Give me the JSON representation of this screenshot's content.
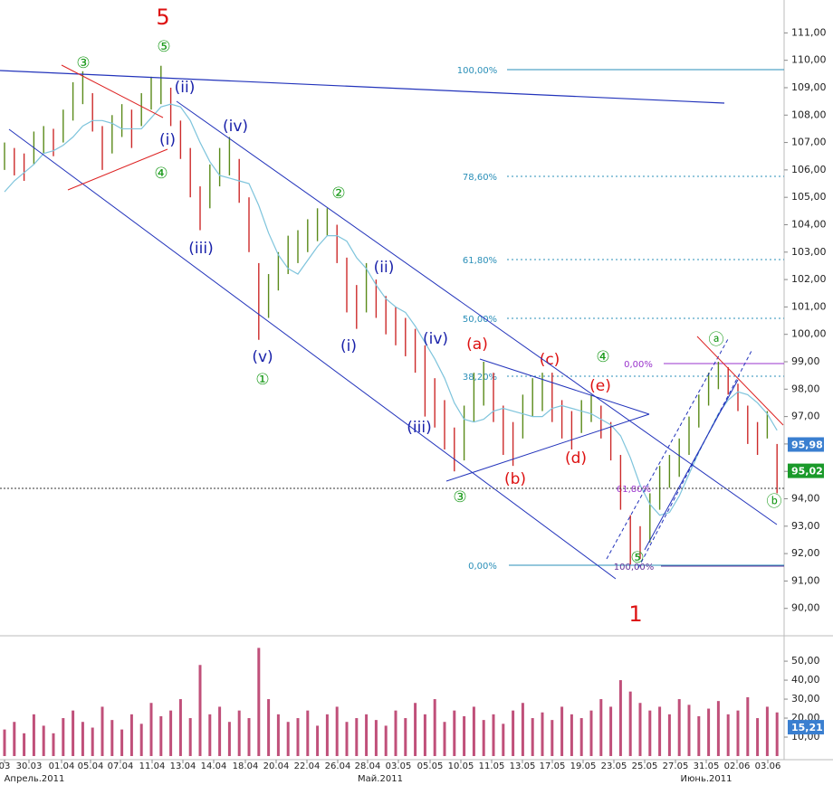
{
  "chart_data": {
    "type": "ohlc",
    "categories": [
      "03",
      "30.03",
      "01.04",
      "05.04",
      "07.04",
      "11.04",
      "13.04",
      "14.04",
      "18.04",
      "20.04",
      "22.04",
      "26.04",
      "28.04",
      "03.05",
      "05.05",
      "10.05",
      "11.05",
      "13.05",
      "17.05",
      "19.05",
      "23.05",
      "25.05",
      "27.05",
      "31.05",
      "02.06",
      "03.06"
    ],
    "months": [
      "Апрель.2011",
      "Май.2011",
      "Июнь.2011"
    ],
    "ylim": [
      89.1,
      112.2
    ],
    "yticks": [
      {
        "value": 111,
        "label": "111,00"
      },
      {
        "value": 110,
        "label": "110,00"
      },
      {
        "value": 109,
        "label": "109,00"
      },
      {
        "value": 108,
        "label": "108,00"
      },
      {
        "value": 107,
        "label": "107,00"
      },
      {
        "value": 106,
        "label": "106,00"
      },
      {
        "value": 105,
        "label": "105,00"
      },
      {
        "value": 104,
        "label": "104,00"
      },
      {
        "value": 103,
        "label": "103,00"
      },
      {
        "value": 102,
        "label": "102,00"
      },
      {
        "value": 101,
        "label": "101,00"
      },
      {
        "value": 100,
        "label": "100,00"
      },
      {
        "value": 99,
        "label": "99,00"
      },
      {
        "value": 98,
        "label": "98,00"
      },
      {
        "value": 97,
        "label": "97,00"
      },
      {
        "value": 96,
        "label": "96,00"
      },
      {
        "value": 95,
        "label": "95,00"
      },
      {
        "value": 94,
        "label": "94,00"
      },
      {
        "value": 93,
        "label": "93,00"
      },
      {
        "value": 92,
        "label": "92,00"
      },
      {
        "value": 91,
        "label": "91,00"
      },
      {
        "value": 90,
        "label": "90,00"
      }
    ],
    "high": [
      107.0,
      106.8,
      106.6,
      107.4,
      107.6,
      107.5,
      108.2,
      109.2,
      109.6,
      108.8,
      107.6,
      108.0,
      108.4,
      108.2,
      108.8,
      109.4,
      109.8,
      109.0,
      107.8,
      106.8,
      105.4,
      106.2,
      106.8,
      107.2,
      106.4,
      105.0,
      102.6,
      102.2,
      103.0,
      103.6,
      103.8,
      104.2,
      104.6,
      104.6,
      104.0,
      102.8,
      101.8,
      102.6,
      102.0,
      101.4,
      101.0,
      100.6,
      100.2,
      99.6,
      98.4,
      97.6,
      96.6,
      97.4,
      98.6,
      99.0,
      98.6,
      97.4,
      96.8,
      97.8,
      98.4,
      98.6,
      98.6,
      97.6,
      97.2,
      97.6,
      97.8,
      97.4,
      96.8,
      95.6,
      93.4,
      93.0,
      94.2,
      95.2,
      95.6,
      96.2,
      97.0,
      97.8,
      98.6,
      99.0,
      98.8,
      98.2,
      97.4,
      96.8,
      97.2,
      96.0
    ],
    "low": [
      106.0,
      105.8,
      105.6,
      106.2,
      106.6,
      106.5,
      107.0,
      107.8,
      108.4,
      107.4,
      106.0,
      106.6,
      107.2,
      106.8,
      107.6,
      108.2,
      108.4,
      107.6,
      106.4,
      105.0,
      103.8,
      104.6,
      105.4,
      105.8,
      104.8,
      103.0,
      99.8,
      100.6,
      101.6,
      102.2,
      102.6,
      103.0,
      103.4,
      103.6,
      102.6,
      100.8,
      100.2,
      100.8,
      100.6,
      100.0,
      99.6,
      99.2,
      98.6,
      97.0,
      96.6,
      95.8,
      95.0,
      95.4,
      96.8,
      97.4,
      96.8,
      95.6,
      95.2,
      96.2,
      97.0,
      97.2,
      96.8,
      96.2,
      95.8,
      96.4,
      96.8,
      96.2,
      95.4,
      93.6,
      91.6,
      91.8,
      92.4,
      93.6,
      94.4,
      94.8,
      95.6,
      96.6,
      97.4,
      98.0,
      97.8,
      97.2,
      96.0,
      95.6,
      96.2,
      94.2
    ],
    "ma": [
      105.2,
      105.6,
      105.9,
      106.2,
      106.6,
      106.7,
      106.9,
      107.2,
      107.6,
      107.8,
      107.8,
      107.7,
      107.5,
      107.5,
      107.5,
      107.9,
      108.3,
      108.4,
      108.3,
      107.8,
      107.0,
      106.3,
      105.8,
      105.7,
      105.6,
      105.5,
      104.7,
      103.7,
      102.9,
      102.4,
      102.2,
      102.7,
      103.2,
      103.6,
      103.6,
      103.4,
      102.8,
      102.4,
      101.8,
      101.3,
      101.0,
      100.8,
      100.3,
      99.7,
      99.1,
      98.4,
      97.5,
      96.9,
      96.8,
      96.9,
      97.2,
      97.3,
      97.2,
      97.1,
      97.0,
      97.0,
      97.3,
      97.4,
      97.3,
      97.2,
      97.1,
      96.9,
      96.7,
      96.3,
      95.5,
      94.5,
      93.8,
      93.4,
      93.5,
      94.1,
      94.9,
      95.7,
      96.4,
      97.1,
      97.6,
      97.9,
      97.8,
      97.5,
      97.1,
      96.5
    ],
    "price_labels": [
      {
        "value": 95.98,
        "label": "95,98",
        "color": "#3a7fd0"
      },
      {
        "value": 95.02,
        "label": "95,02",
        "color": "#1a9a2a"
      }
    ],
    "volume": [
      14,
      18,
      12,
      22,
      16,
      12,
      20,
      24,
      18,
      15,
      26,
      19,
      14,
      22,
      17,
      28,
      21,
      24,
      30,
      20,
      48,
      22,
      26,
      18,
      24,
      20,
      57,
      30,
      22,
      18,
      20,
      24,
      16,
      22,
      26,
      18,
      20,
      22,
      19,
      16,
      24,
      20,
      28,
      22,
      30,
      18,
      24,
      21,
      26,
      19,
      22,
      17,
      24,
      28,
      20,
      23,
      19,
      26,
      22,
      20,
      24,
      30,
      26,
      40,
      34,
      28,
      24,
      26,
      22,
      30,
      27,
      21,
      25,
      29,
      22,
      24,
      31,
      20,
      26,
      23
    ],
    "vlim": [
      0,
      61
    ],
    "vticks": [
      {
        "value": 50,
        "label": "50,00"
      },
      {
        "value": 40,
        "label": "40,00"
      },
      {
        "value": 30,
        "label": "30,00"
      },
      {
        "value": 20,
        "label": "20,00"
      },
      {
        "value": 10,
        "label": "10,00"
      }
    ],
    "volume_label": {
      "value": 15.21,
      "label": "15,21",
      "color": "#3a7fd0"
    },
    "annotations": [
      "5",
      "⑤",
      "③",
      "④",
      "(ii)",
      "(i)",
      "(iv)",
      "(iii)",
      "(v)",
      "①",
      "②",
      "(ii)",
      "(i)",
      "(iv)",
      "(iii)",
      "(a)",
      "(b)",
      "(c)",
      "(d)",
      "(e)",
      "③",
      "④",
      "⑤",
      "1",
      "ⓐ",
      "ⓑ"
    ],
    "fib_labels": [
      "100,00%",
      "78,60%",
      "61,80%",
      "50,00%",
      "38,20%",
      "0,00%",
      "0,00%",
      "61,80%",
      "100,00%"
    ]
  }
}
